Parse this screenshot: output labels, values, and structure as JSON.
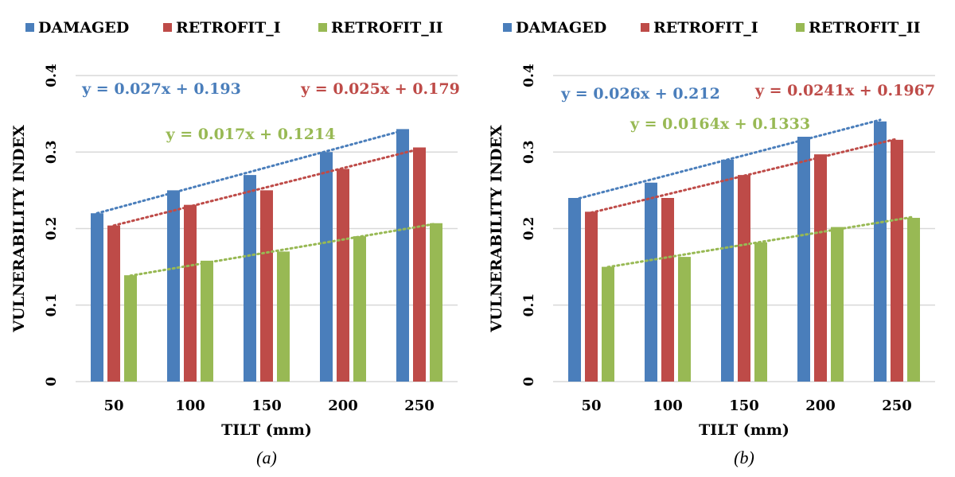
{
  "colors": {
    "damaged": "#4a7ebb",
    "retrofit_i": "#be4b48",
    "retrofit_ii": "#98b954",
    "grid": "#d9d9d9",
    "text": "#000000"
  },
  "chart_data": [
    {
      "type": "bar",
      "caption": "(a)",
      "xlabel": "TILT (mm)",
      "ylabel": "VULNERABILITY INDEX",
      "categories": [
        "50",
        "100",
        "150",
        "200",
        "250"
      ],
      "ylim": [
        0,
        0.4
      ],
      "yticks": [
        0,
        0.1,
        0.2,
        0.3,
        0.4
      ],
      "ytick_labels": [
        "0",
        "0.1",
        "0.2",
        "0.3",
        "0.4"
      ],
      "grid": true,
      "legend_position": "top",
      "series": [
        {
          "name": "DAMAGED",
          "color_key": "damaged",
          "values": [
            0.22,
            0.25,
            0.27,
            0.3,
            0.33
          ],
          "trendline": {
            "slope": 0.027,
            "intercept": 0.193,
            "label": "y = 0.027x + 0.193"
          }
        },
        {
          "name": "RETROFIT_I",
          "color_key": "retrofit_i",
          "values": [
            0.204,
            0.231,
            0.25,
            0.278,
            0.306
          ],
          "trendline": {
            "slope": 0.025,
            "intercept": 0.179,
            "label": "y = 0.025x + 0.179"
          }
        },
        {
          "name": "RETROFIT_II",
          "color_key": "retrofit_ii",
          "values": [
            0.139,
            0.158,
            0.17,
            0.19,
            0.207
          ],
          "trendline": {
            "slope": 0.017,
            "intercept": 0.1214,
            "label": "y = 0.017x + 0.1214"
          }
        }
      ]
    },
    {
      "type": "bar",
      "caption": "(b)",
      "xlabel": "TILT (mm)",
      "ylabel": "VULNERABILITY INDEX",
      "categories": [
        "50",
        "100",
        "150",
        "200",
        "250"
      ],
      "ylim": [
        0,
        0.4
      ],
      "yticks": [
        0,
        0.1,
        0.2,
        0.3,
        0.4
      ],
      "ytick_labels": [
        "0",
        "0.1",
        "0.2",
        "0.3",
        "0.4"
      ],
      "grid": true,
      "legend_position": "top",
      "series": [
        {
          "name": "DAMAGED",
          "color_key": "damaged",
          "values": [
            0.24,
            0.26,
            0.29,
            0.32,
            0.34
          ],
          "trendline": {
            "slope": 0.026,
            "intercept": 0.212,
            "label": "y = 0.026x + 0.212"
          }
        },
        {
          "name": "RETROFIT_I",
          "color_key": "retrofit_i",
          "values": [
            0.222,
            0.24,
            0.27,
            0.297,
            0.316
          ],
          "trendline": {
            "slope": 0.0241,
            "intercept": 0.1967,
            "label": "y = 0.0241x + 0.1967"
          }
        },
        {
          "name": "RETROFIT_II",
          "color_key": "retrofit_ii",
          "values": [
            0.15,
            0.163,
            0.182,
            0.202,
            0.214
          ],
          "trendline": {
            "slope": 0.0164,
            "intercept": 0.1333,
            "label": "y = 0.0164x + 0.1333"
          }
        }
      ]
    }
  ]
}
